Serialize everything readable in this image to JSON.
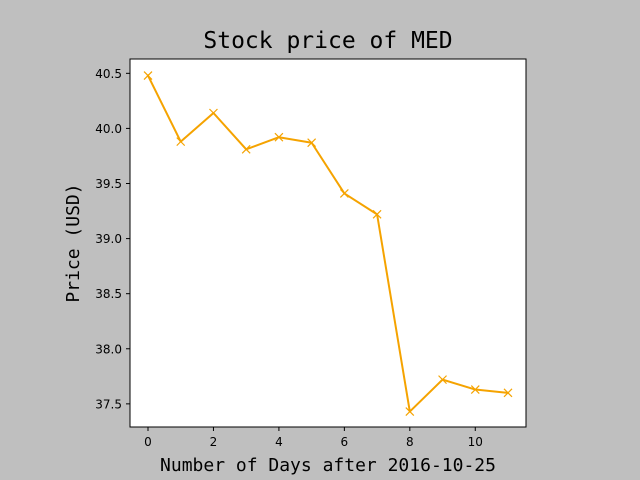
{
  "chart_data": {
    "type": "line",
    "title": "Stock price of MED",
    "xlabel": "Number of Days after 2016-10-25",
    "ylabel": "Price (USD)",
    "xlim": [
      -0.55,
      11.55
    ],
    "ylim": [
      37.29,
      40.63
    ],
    "x_ticks": [
      0,
      2,
      4,
      6,
      8,
      10
    ],
    "x_tick_labels": [
      "0",
      "2",
      "4",
      "6",
      "8",
      "10"
    ],
    "y_ticks": [
      37.5,
      38.0,
      38.5,
      39.0,
      39.5,
      40.0,
      40.5
    ],
    "y_tick_labels": [
      "37.5",
      "38.0",
      "38.5",
      "39.0",
      "39.5",
      "40.0",
      "40.5"
    ],
    "grid": false,
    "series": [
      {
        "color": "#f5a300",
        "marker": "x",
        "x": [
          0,
          1,
          2,
          3,
          4,
          5,
          6,
          7,
          8,
          9,
          10,
          11
        ],
        "y": [
          40.48,
          39.88,
          40.14,
          39.81,
          39.92,
          39.87,
          39.41,
          39.22,
          37.43,
          37.72,
          37.63,
          37.6
        ]
      }
    ]
  }
}
